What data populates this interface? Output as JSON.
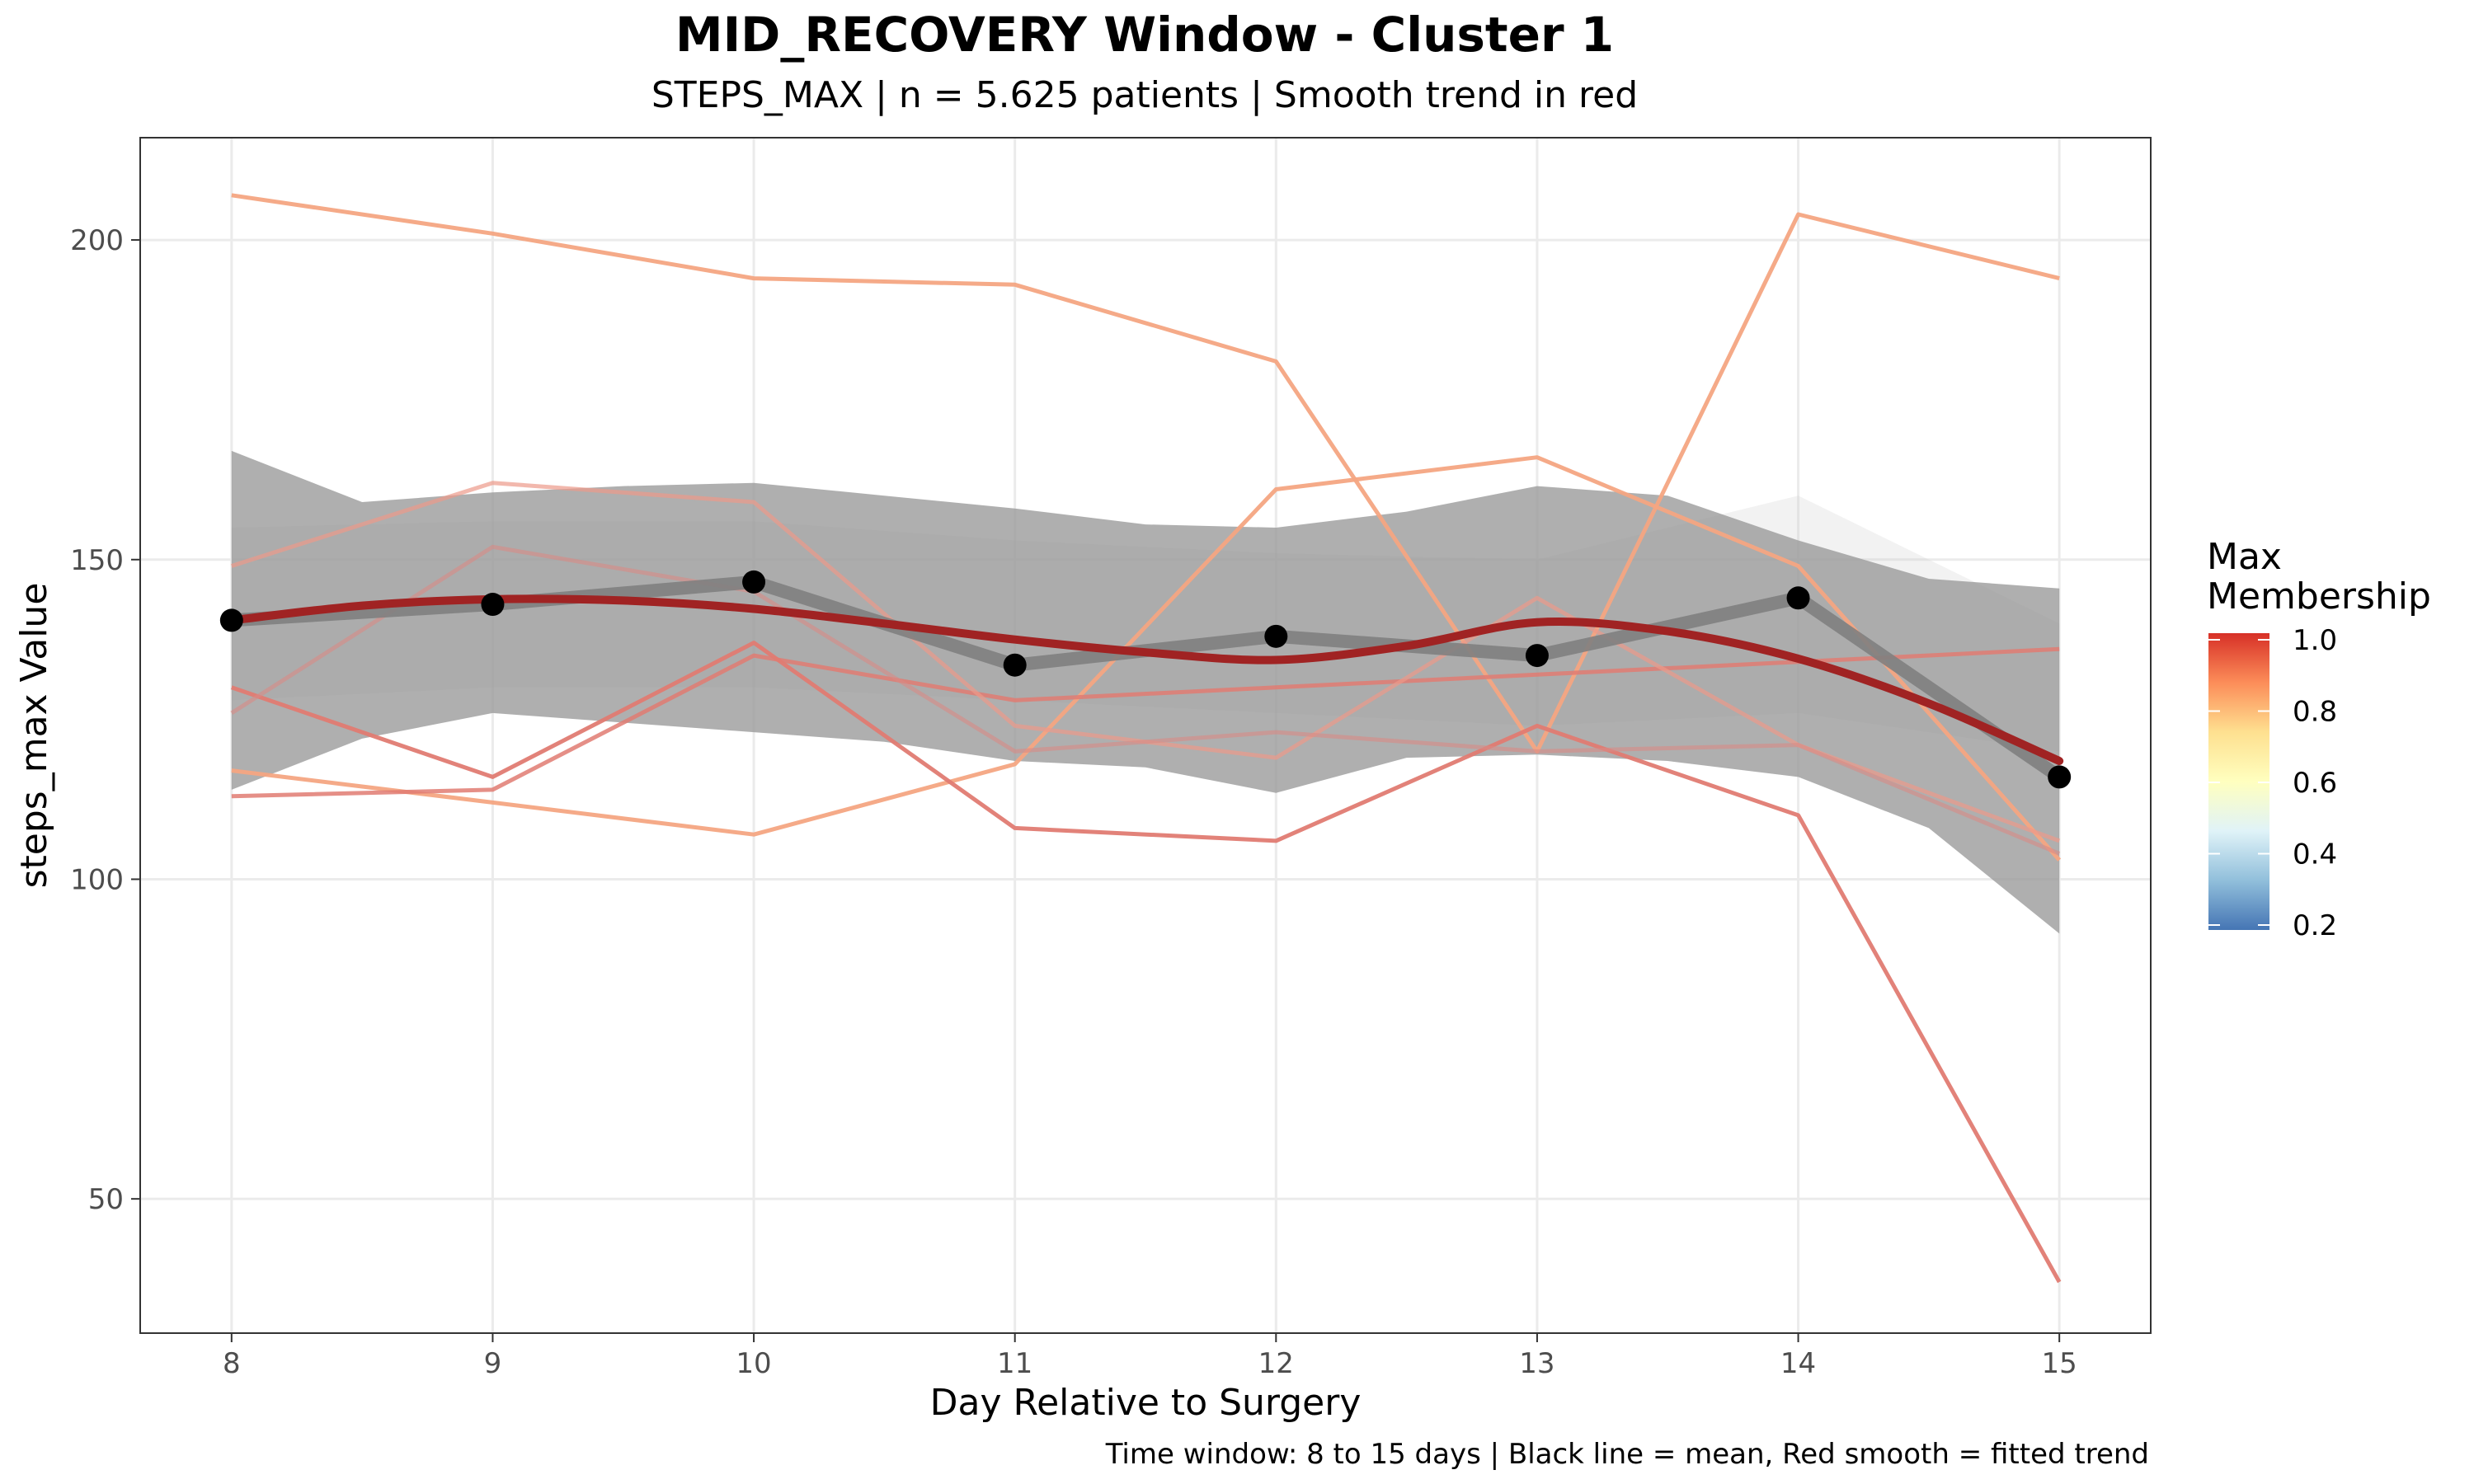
{
  "chart_data": {
    "type": "line",
    "title": "MID_RECOVERY Window - Cluster 1",
    "subtitle": "STEPS_MAX | n = 5.625 patients | Smooth trend in red",
    "xlabel": "Day Relative to Surgery",
    "ylabel": "steps_max Value",
    "caption": "Time window: 8 to 15 days | Black line = mean, Red smooth = fitted trend",
    "x": [
      8,
      9,
      10,
      11,
      12,
      13,
      14,
      15
    ],
    "x_ticks": [
      "8",
      "9",
      "10",
      "11",
      "12",
      "13",
      "14",
      "15"
    ],
    "y_ticks": [
      "50",
      "100",
      "150",
      "200"
    ],
    "xlim": [
      7.65,
      15.35
    ],
    "ylim": [
      29,
      216
    ],
    "grid": true,
    "legend": {
      "title_line1": "Max",
      "title_line2": "Membership",
      "position": "right",
      "ticks": [
        "1.0",
        "0.8",
        "0.6",
        "0.4",
        "0.2"
      ],
      "gradient": [
        "#4575b4",
        "#91bfdb",
        "#e0f3f8",
        "#ffffbf",
        "#fee090",
        "#fc8d59",
        "#d73027"
      ]
    },
    "series": [
      {
        "values": [
          207,
          201,
          194,
          193,
          181,
          120,
          204,
          194
        ],
        "color": "#f4a582",
        "opacity": 0.95
      },
      {
        "values": [
          117,
          112,
          107,
          118,
          161,
          166,
          149,
          103
        ],
        "color": "#f4a582",
        "opacity": 0.95
      },
      {
        "values": [
          130,
          116,
          137,
          108,
          106,
          124,
          110,
          37
        ],
        "color": "#e07b72",
        "opacity": 0.95
      },
      {
        "values": [
          113,
          114,
          135,
          128,
          130,
          132,
          134,
          136
        ],
        "color": "#e07b72",
        "opacity": 0.85
      },
      {
        "values": [
          149,
          162,
          159,
          124,
          119,
          144,
          121,
          106
        ],
        "color": "#ec9a8a",
        "opacity": 0.7
      },
      {
        "values": [
          126,
          152,
          145,
          120,
          123,
          120,
          121,
          104
        ],
        "color": "#d98a86",
        "opacity": 0.6
      }
    ],
    "mean": [
      140.5,
      143,
      146.5,
      133.5,
      138,
      135,
      144,
      116
    ],
    "smooth": {
      "color": "#a02323",
      "band_color": "#999999",
      "x": [
        8,
        8.5,
        9,
        9.5,
        10,
        10.5,
        11,
        11.5,
        12,
        12.5,
        13,
        13.5,
        14,
        14.5,
        15
      ],
      "y": [
        140.5,
        142.8,
        143.8,
        143.6,
        142.3,
        140,
        137.5,
        135.5,
        134.3,
        136.5,
        140.2,
        138.8,
        134.5,
        127.5,
        118.5
      ],
      "lower": [
        114,
        122,
        126,
        124.5,
        123,
        121.5,
        118.5,
        117.5,
        113.5,
        119,
        119.5,
        118.5,
        116,
        108,
        91.5
      ],
      "upper": [
        167,
        159,
        160.5,
        161.5,
        162,
        160,
        158,
        155.5,
        155,
        157.5,
        161.5,
        160,
        153,
        147,
        145.5
      ]
    },
    "background_band": {
      "x": [
        8,
        9,
        10,
        11,
        12,
        13,
        14,
        15
      ],
      "lower": [
        128,
        130,
        130,
        128,
        126,
        124,
        126,
        120
      ],
      "upper": [
        155,
        156,
        156,
        153,
        151,
        150,
        160,
        140
      ]
    }
  }
}
